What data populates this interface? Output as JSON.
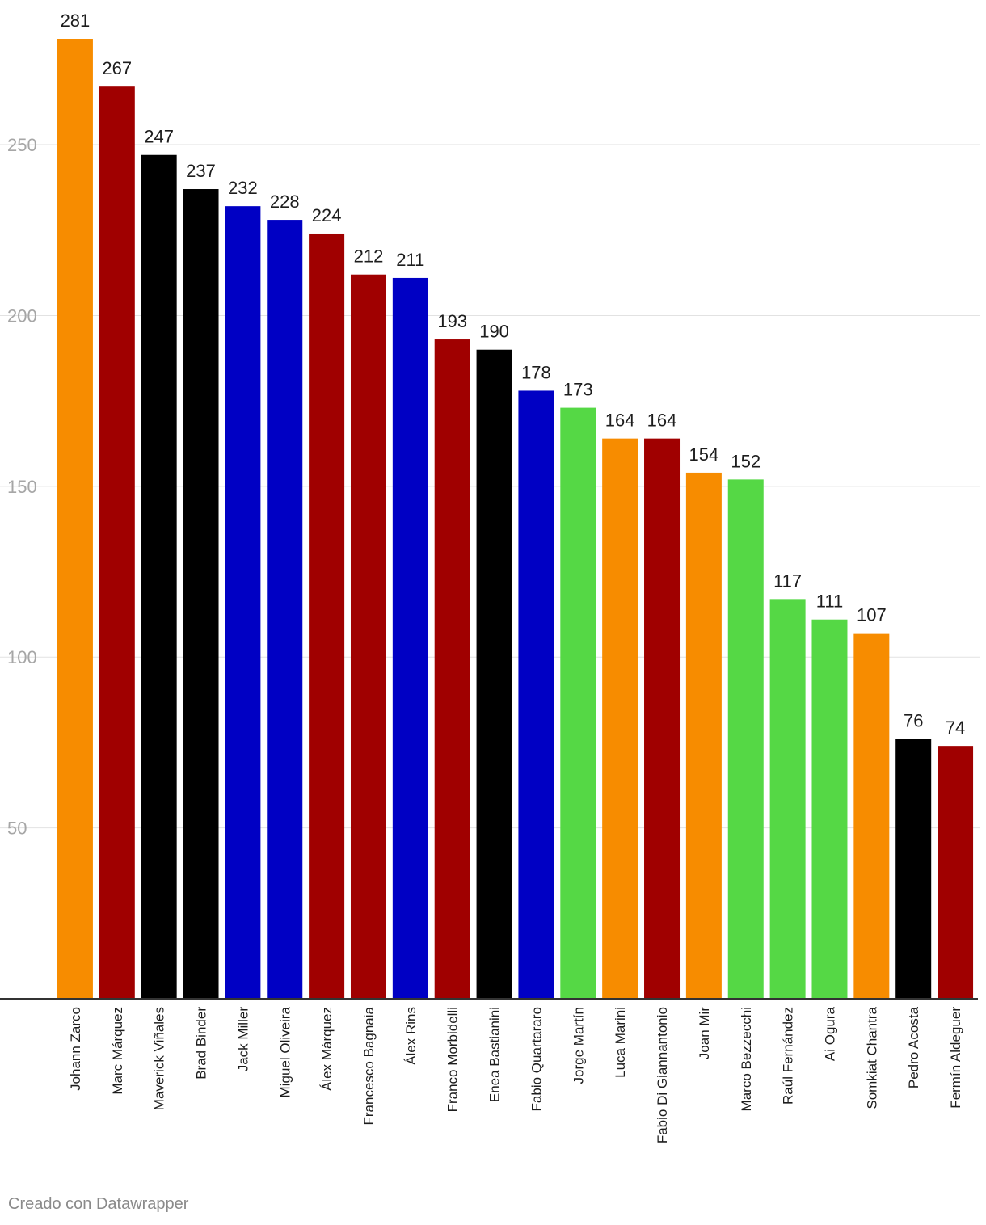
{
  "chart_data": {
    "type": "bar",
    "title": "",
    "xlabel": "",
    "ylabel": "",
    "ylim": [
      0,
      281
    ],
    "yticks": [
      50,
      100,
      150,
      200,
      250
    ],
    "grid": true,
    "categories": [
      "Johann Zarco",
      "Marc Márquez",
      "Maverick Viñales",
      "Brad Binder",
      "Jack Miller",
      "Miguel Oliveira",
      "Álex Márquez",
      "Francesco Bagnaia",
      "Álex Rins",
      "Franco Morbidelli",
      "Enea Bastianini",
      "Fabio Quartararo",
      "Jorge Martín",
      "Luca Marini",
      "Fabio Di Giannantonio",
      "Joan Mir",
      "Marco Bezzecchi",
      "Raúl Fernández",
      "Ai Ogura",
      "Somkiat Chantra",
      "Pedro Acosta",
      "Fermín Aldeguer"
    ],
    "values": [
      281,
      267,
      247,
      237,
      232,
      228,
      224,
      212,
      211,
      193,
      190,
      178,
      173,
      164,
      164,
      154,
      152,
      117,
      111,
      107,
      76,
      74
    ],
    "colors": [
      "#f78c00",
      "#a00000",
      "#000000",
      "#000000",
      "#0000c4",
      "#0000c4",
      "#a00000",
      "#a00000",
      "#0000c4",
      "#a00000",
      "#000000",
      "#0000c4",
      "#55d845",
      "#f78c00",
      "#a00000",
      "#f78c00",
      "#55d845",
      "#55d845",
      "#55d845",
      "#f78c00",
      "#000000",
      "#a00000"
    ]
  },
  "footer": {
    "credit": "Creado con Datawrapper"
  }
}
